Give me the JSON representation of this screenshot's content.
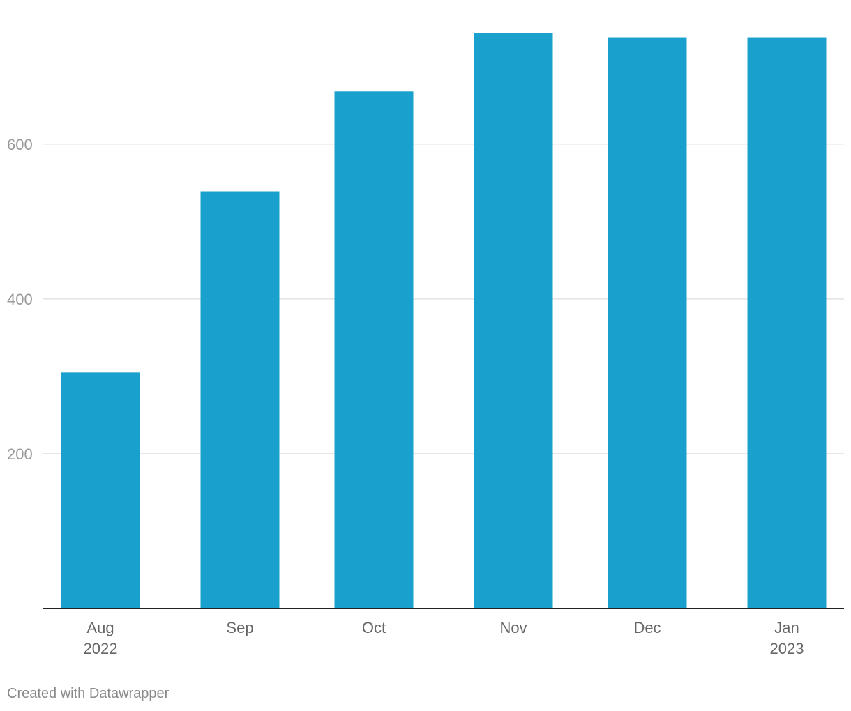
{
  "chart_data": {
    "type": "bar",
    "title": "",
    "xlabel": "",
    "ylabel": "",
    "categories": [
      "Aug 2022",
      "Sep",
      "Oct",
      "Nov",
      "Dec",
      "Jan 2023"
    ],
    "x_tick_labels": [
      [
        "Aug",
        "2022"
      ],
      [
        "Sep"
      ],
      [
        "Oct"
      ],
      [
        "Nov"
      ],
      [
        "Dec"
      ],
      [
        "Jan",
        "2023"
      ]
    ],
    "values": [
      305,
      539,
      668,
      743,
      738,
      738
    ],
    "ylim": [
      0,
      745
    ],
    "y_ticks": [
      200,
      400,
      600
    ],
    "grid": true,
    "bar_color": "#1aa0cd",
    "gridline_color": "#e3e3e3",
    "baseline_color": "#222222"
  },
  "footer": {
    "credit": "Created with Datawrapper"
  }
}
